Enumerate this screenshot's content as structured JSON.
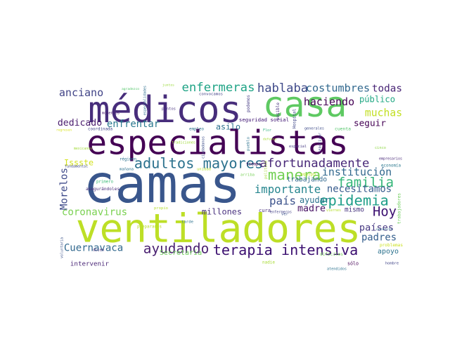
{
  "words": [
    {
      "text": "camas",
      "color": "#39568c"
    },
    {
      "text": "especialistas",
      "color": "#440154"
    },
    {
      "text": "ventiladores",
      "color": "#bddf26"
    },
    {
      "text": "médicos",
      "color": "#472d7b"
    },
    {
      "text": "casa",
      "color": "#5ec962"
    },
    {
      "text": "terapia intensiva",
      "color": "#3b0f70"
    },
    {
      "text": "adultos mayores",
      "color": "#2c728e"
    },
    {
      "text": "ayudando",
      "color": "#481f70"
    },
    {
      "text": "epidemia",
      "color": "#1f9e89"
    },
    {
      "text": "familia",
      "color": "#35b779"
    },
    {
      "text": "manera",
      "color": "#73d055"
    },
    {
      "text": "afortunadamente",
      "color": "#482878"
    },
    {
      "text": "institución",
      "color": "#31688e"
    },
    {
      "text": "haciendo",
      "color": "#440154"
    },
    {
      "text": "enfermeras",
      "color": "#20a486"
    },
    {
      "text": "hablaba",
      "color": "#3e4989"
    },
    {
      "text": "costumbres",
      "color": "#31688e"
    },
    {
      "text": "todas",
      "color": "#482475"
    },
    {
      "text": "anciano",
      "color": "#414487"
    },
    {
      "text": "público",
      "color": "#22a884"
    },
    {
      "text": "muchas",
      "color": "#c2df23"
    },
    {
      "text": "seguir",
      "color": "#440154"
    },
    {
      "text": "dedicado",
      "color": "#481a6c"
    },
    {
      "text": "enfrentar",
      "color": "#2a788e"
    },
    {
      "text": "asilo",
      "color": "#2d708e"
    },
    {
      "text": "Issste",
      "color": "#d2e21b"
    },
    {
      "text": "importante",
      "color": "#25858e"
    },
    {
      "text": "necesitamos",
      "color": "#375b8d"
    },
    {
      "text": "país",
      "color": "#3b528b"
    },
    {
      "text": "ayudar",
      "color": "#2c728e"
    },
    {
      "text": "Morelos",
      "color": "#3e4a89"
    },
    {
      "text": "madre",
      "color": "#471164"
    },
    {
      "text": "coronavirus",
      "color": "#7ad151"
    },
    {
      "text": "millones",
      "color": "#472f7d"
    },
    {
      "text": "Hoy",
      "color": "#3b0f70"
    },
    {
      "text": "países",
      "color": "#453781"
    },
    {
      "text": "padres",
      "color": "#355f8d"
    },
    {
      "text": "Cuernavaca",
      "color": "#31688e"
    },
    {
      "text": "intervenir",
      "color": "#482475"
    },
    {
      "text": "Secretaría",
      "color": "#6ece58"
    },
    {
      "text": "apoyo",
      "color": "#2c728e"
    },
    {
      "text": "trabajando",
      "color": "#31688e"
    },
    {
      "text": "seguridad social",
      "color": "#3b0f70"
    },
    {
      "text": "mismo",
      "color": "#46337e"
    },
    {
      "text": "trabajadores",
      "color": "#6ccd5a"
    },
    {
      "text": "agradezco",
      "color": "#52c569"
    },
    {
      "text": "especialidades",
      "color": "#2e6e8e"
    },
    {
      "text": "momentos",
      "color": "#482071"
    },
    {
      "text": "puntos",
      "color": "#46307e"
    },
    {
      "text": "convocamos",
      "color": "#424086"
    },
    {
      "text": "podemos",
      "color": "#443a83"
    },
    {
      "text": "juntos",
      "color": "#9bd93c"
    },
    {
      "text": "coordinada",
      "color": "#414487"
    },
    {
      "text": "empleo",
      "color": "#2c728e"
    },
    {
      "text": "Flor",
      "color": "#2db27d"
    },
    {
      "text": "posible",
      "color": "#46327e"
    },
    {
      "text": "Hospital",
      "color": "#3f4788"
    },
    {
      "text": "generales",
      "color": "#3e4c8a"
    },
    {
      "text": "cuenta",
      "color": "#52c569"
    },
    {
      "text": "regresen",
      "color": "#d8e219"
    },
    {
      "text": "tradiciones",
      "color": "#a0da39"
    },
    {
      "text": "pueblo",
      "color": "#2c728e"
    },
    {
      "text": "reactivar",
      "color": "#3f4889"
    },
    {
      "text": "mexicanos",
      "color": "#a2da37"
    },
    {
      "text": "defensa",
      "color": "#a8db34"
    },
    {
      "text": "especial",
      "color": "#443983"
    },
    {
      "text": "ciudadanos",
      "color": "#3d4e8a"
    },
    {
      "text": "cinco",
      "color": "#8ed645"
    },
    {
      "text": "régimen",
      "color": "#2c728e"
    },
    {
      "text": "fundamental",
      "color": "#3f4889"
    },
    {
      "text": "mañana",
      "color": "#2c728e"
    },
    {
      "text": "tiempo",
      "color": "#440154"
    },
    {
      "text": "unidad",
      "color": "#b5de2b"
    },
    {
      "text": "político",
      "color": "#a5db36"
    },
    {
      "text": "equipo",
      "color": "#b8de29"
    },
    {
      "text": "empresarios",
      "color": "#482878"
    },
    {
      "text": "economía",
      "color": "#2a788e"
    },
    {
      "text": "primero",
      "color": "#3aba76"
    },
    {
      "text": "asegurándoles",
      "color": "#472c7a"
    },
    {
      "text": "arriba",
      "color": "#75d054"
    },
    {
      "text": "propio",
      "color": "#b5de2b"
    },
    {
      "text": "cura",
      "color": "#472f7d"
    },
    {
      "text": "enfermeros",
      "color": "#424086"
    },
    {
      "text": "preparados",
      "color": "#b8de29"
    },
    {
      "text": "tarde",
      "color": "#2c728e"
    },
    {
      "text": "necesita",
      "color": "#2d708e"
    },
    {
      "text": "hombre",
      "color": "#414487"
    },
    {
      "text": "voluntaria",
      "color": "#3b528b"
    },
    {
      "text": "dicen",
      "color": "#482576"
    },
    {
      "text": "nadie",
      "color": "#a8db34"
    },
    {
      "text": "difíciles",
      "color": "#73d055"
    },
    {
      "text": "sólo",
      "color": "#440154"
    },
    {
      "text": "problemas",
      "color": "#cae11f"
    },
    {
      "text": "viernes",
      "color": "#b5de2b"
    },
    {
      "text": "atendidos",
      "color": "#2c728e"
    },
    {
      "text": "ver",
      "color": "#3b528b"
    }
  ]
}
